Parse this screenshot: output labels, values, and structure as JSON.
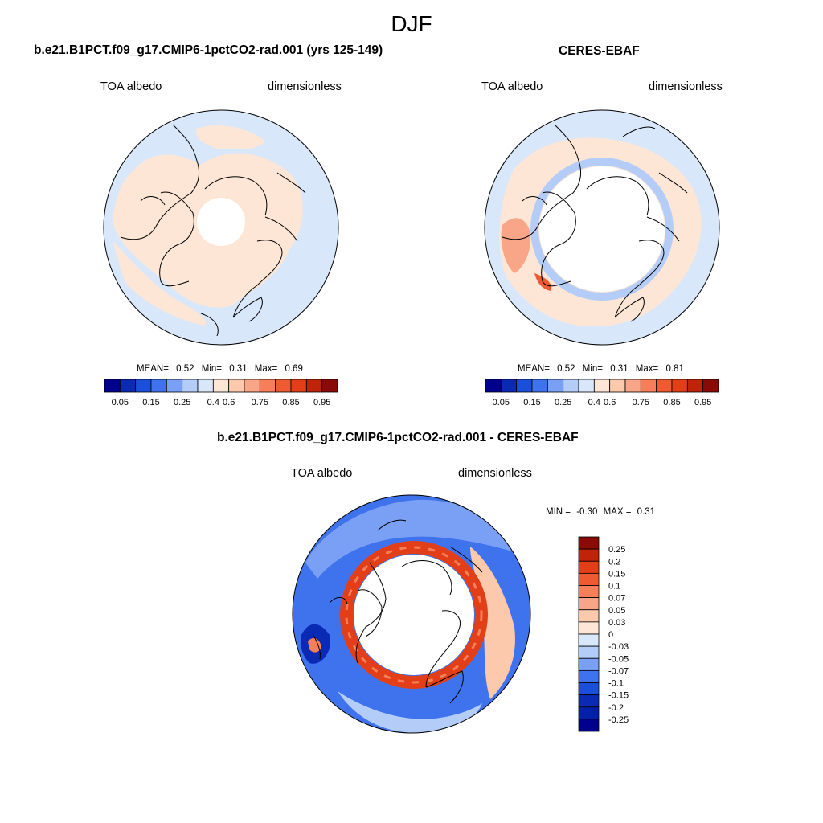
{
  "figure": {
    "season": "DJF"
  },
  "panels": {
    "model": {
      "title": "b.e21.B1PCT.f09_g17.CMIP6-1pctCO2-rad.001 (yrs 125-149)",
      "variable": "TOA albedo",
      "units": "dimensionless",
      "mean_label": "MEAN=",
      "mean": "0.52",
      "min_label": "Min=",
      "min": "0.31",
      "max_label": "Max=",
      "max": "0.69"
    },
    "obs": {
      "title": "CERES-EBAF",
      "variable": "TOA albedo",
      "units": "dimensionless",
      "mean_label": "MEAN=",
      "mean": "0.52",
      "min_label": "Min=",
      "min": "0.31",
      "max_label": "Max=",
      "max": "0.81"
    },
    "diff": {
      "title": "b.e21.B1PCT.f09_g17.CMIP6-1pctCO2-rad.001 - CERES-EBAF",
      "variable": "TOA albedo",
      "units": "dimensionless",
      "min_label": "MIN =",
      "min": "-0.30",
      "max_label": "MAX =",
      "max": "0.31"
    }
  },
  "colorbars": {
    "absolute": {
      "labels": [
        "0.05",
        "0.15",
        "0.25",
        "0.4",
        "0.6",
        "0.75",
        "0.85",
        "0.95"
      ],
      "colors": [
        "#00008c",
        "#0a2ab4",
        "#1a4fd9",
        "#3f73ee",
        "#7aa0f5",
        "#b4cdf8",
        "#d9e7fb",
        "#fde6d6",
        "#fcc9ad",
        "#f9a587",
        "#f67f5a",
        "#ee5a32",
        "#e23e18",
        "#c02408",
        "#8a0b06"
      ]
    },
    "difference": {
      "labels": [
        "0.25",
        "0.2",
        "0.15",
        "0.1",
        "0.07",
        "0.05",
        "0.03",
        "0",
        "-0.03",
        "-0.05",
        "-0.07",
        "-0.1",
        "-0.15",
        "-0.2",
        "-0.25"
      ],
      "colors": [
        "#8a0b06",
        "#c02408",
        "#e23e18",
        "#ee5a32",
        "#f67f5a",
        "#f9a587",
        "#fcc9ad",
        "#fde6d6",
        "#d9e7fb",
        "#b4cdf8",
        "#7aa0f5",
        "#3f73ee",
        "#1a4fd9",
        "#0a2ab4",
        "#0020a8",
        "#00008c"
      ]
    }
  }
}
